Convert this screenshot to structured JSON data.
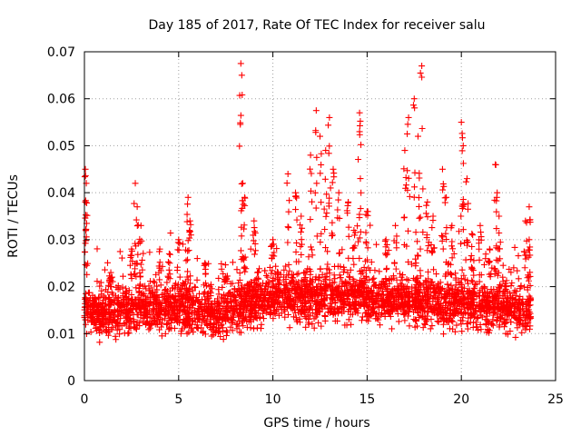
{
  "chart_data": {
    "type": "scatter",
    "title": "Day 185 of 2017, Rate Of TEC Index for receiver salu",
    "xlabel": "GPS time / hours",
    "ylabel": "ROTI / TECUs",
    "xlim": [
      0,
      25
    ],
    "ylim": [
      0,
      0.07
    ],
    "x_ticks": [
      "0",
      "5",
      "10",
      "15",
      "20",
      "25"
    ],
    "y_ticks": [
      "0",
      "0.01",
      "0.02",
      "0.03",
      "0.04",
      "0.05",
      "0.06",
      "0.07"
    ],
    "grid": true,
    "marker": "+",
    "series_color": "#ff0000",
    "baseline": [
      {
        "x": 0.0,
        "y": 0.015
      },
      {
        "x": 1.0,
        "y": 0.014
      },
      {
        "x": 2.0,
        "y": 0.015
      },
      {
        "x": 3.0,
        "y": 0.016
      },
      {
        "x": 4.0,
        "y": 0.015
      },
      {
        "x": 5.0,
        "y": 0.016
      },
      {
        "x": 6.0,
        "y": 0.015
      },
      {
        "x": 7.0,
        "y": 0.014
      },
      {
        "x": 8.0,
        "y": 0.016
      },
      {
        "x": 9.0,
        "y": 0.017
      },
      {
        "x": 10.0,
        "y": 0.018
      },
      {
        "x": 11.0,
        "y": 0.018
      },
      {
        "x": 12.0,
        "y": 0.017
      },
      {
        "x": 13.0,
        "y": 0.018
      },
      {
        "x": 14.0,
        "y": 0.018
      },
      {
        "x": 15.0,
        "y": 0.018
      },
      {
        "x": 16.0,
        "y": 0.017
      },
      {
        "x": 17.0,
        "y": 0.018
      },
      {
        "x": 18.0,
        "y": 0.017
      },
      {
        "x": 19.0,
        "y": 0.016
      },
      {
        "x": 20.0,
        "y": 0.017
      },
      {
        "x": 21.0,
        "y": 0.016
      },
      {
        "x": 22.0,
        "y": 0.016
      },
      {
        "x": 23.0,
        "y": 0.015
      },
      {
        "x": 23.7,
        "y": 0.015
      }
    ],
    "spikes": [
      {
        "x": 0.05,
        "y": 0.045
      },
      {
        "x": 0.1,
        "y": 0.042
      },
      {
        "x": 0.05,
        "y": 0.038
      },
      {
        "x": 1.4,
        "y": 0.023
      },
      {
        "x": 2.5,
        "y": 0.028
      },
      {
        "x": 2.7,
        "y": 0.042
      },
      {
        "x": 2.8,
        "y": 0.037
      },
      {
        "x": 3.0,
        "y": 0.033
      },
      {
        "x": 4.0,
        "y": 0.028
      },
      {
        "x": 4.5,
        "y": 0.027
      },
      {
        "x": 5.0,
        "y": 0.03
      },
      {
        "x": 5.5,
        "y": 0.039
      },
      {
        "x": 5.6,
        "y": 0.034
      },
      {
        "x": 6.4,
        "y": 0.025
      },
      {
        "x": 7.5,
        "y": 0.022
      },
      {
        "x": 8.3,
        "y": 0.0675
      },
      {
        "x": 8.35,
        "y": 0.065
      },
      {
        "x": 8.4,
        "y": 0.042
      },
      {
        "x": 8.5,
        "y": 0.039
      },
      {
        "x": 9.0,
        "y": 0.034
      },
      {
        "x": 10.0,
        "y": 0.03
      },
      {
        "x": 10.8,
        "y": 0.044
      },
      {
        "x": 11.2,
        "y": 0.04
      },
      {
        "x": 11.5,
        "y": 0.035
      },
      {
        "x": 12.0,
        "y": 0.048
      },
      {
        "x": 12.3,
        "y": 0.0575
      },
      {
        "x": 12.5,
        "y": 0.052
      },
      {
        "x": 12.8,
        "y": 0.049
      },
      {
        "x": 13.0,
        "y": 0.056
      },
      {
        "x": 13.2,
        "y": 0.045
      },
      {
        "x": 13.5,
        "y": 0.04
      },
      {
        "x": 14.0,
        "y": 0.038
      },
      {
        "x": 14.3,
        "y": 0.032
      },
      {
        "x": 14.6,
        "y": 0.057
      },
      {
        "x": 14.6,
        "y": 0.053
      },
      {
        "x": 15.0,
        "y": 0.036
      },
      {
        "x": 16.0,
        "y": 0.03
      },
      {
        "x": 16.5,
        "y": 0.033
      },
      {
        "x": 17.0,
        "y": 0.049
      },
      {
        "x": 17.2,
        "y": 0.056
      },
      {
        "x": 17.5,
        "y": 0.06
      },
      {
        "x": 17.7,
        "y": 0.052
      },
      {
        "x": 17.9,
        "y": 0.067
      },
      {
        "x": 18.2,
        "y": 0.038
      },
      {
        "x": 18.5,
        "y": 0.035
      },
      {
        "x": 19.0,
        "y": 0.045
      },
      {
        "x": 19.2,
        "y": 0.039
      },
      {
        "x": 19.5,
        "y": 0.033
      },
      {
        "x": 20.0,
        "y": 0.055
      },
      {
        "x": 20.1,
        "y": 0.05
      },
      {
        "x": 20.3,
        "y": 0.043
      },
      {
        "x": 20.6,
        "y": 0.031
      },
      {
        "x": 21.0,
        "y": 0.033
      },
      {
        "x": 21.5,
        "y": 0.028
      },
      {
        "x": 21.8,
        "y": 0.046
      },
      {
        "x": 21.9,
        "y": 0.04
      },
      {
        "x": 22.0,
        "y": 0.035
      },
      {
        "x": 23.4,
        "y": 0.034
      },
      {
        "x": 23.6,
        "y": 0.037
      },
      {
        "x": 23.6,
        "y": 0.03
      }
    ]
  }
}
